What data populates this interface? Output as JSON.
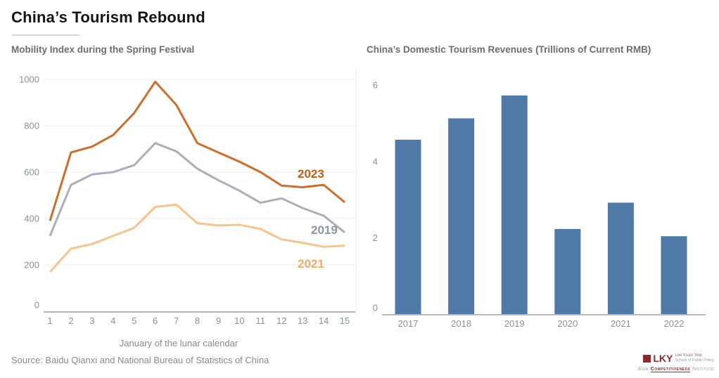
{
  "header": {
    "title": "China’s Tourism Rebound"
  },
  "source": "Source: Baidu Qianxi and National Bureau of Statistics of China",
  "logo": {
    "acronym": "LKY",
    "line1": "Lee Kuan Yew",
    "line2": "School of Public Policy",
    "asia": "Asia",
    "competitiveness": "Competitiveness",
    "institute": "Institute",
    "brand_color": "#8e2a2b"
  },
  "chart_data": [
    {
      "type": "line",
      "title": "Mobility Index during the Spring Festival",
      "xlabel": "January of the lunar calendar",
      "x": [
        1,
        2,
        3,
        4,
        5,
        6,
        7,
        8,
        9,
        10,
        11,
        12,
        13,
        14,
        15
      ],
      "ylim": [
        0,
        1000
      ],
      "yticks": [
        0,
        200,
        400,
        600,
        800,
        1000
      ],
      "grid": true,
      "legend_position": "inline-right",
      "series": [
        {
          "name": "2019",
          "color": "#a9b0bb",
          "label_color": "#8c96a7",
          "values": [
            325,
            545,
            590,
            600,
            630,
            725,
            690,
            615,
            565,
            520,
            468,
            487,
            445,
            412,
            340
          ]
        },
        {
          "name": "2021",
          "color": "#f8c48e",
          "label_color": "#f5ab66",
          "values": [
            170,
            270,
            290,
            325,
            360,
            450,
            460,
            380,
            370,
            373,
            355,
            310,
            295,
            278,
            283
          ]
        },
        {
          "name": "2023",
          "color": "#cd6e2d",
          "label_color": "#c45e11",
          "values": [
            390,
            685,
            710,
            760,
            855,
            990,
            890,
            725,
            685,
            645,
            600,
            542,
            535,
            545,
            470
          ]
        }
      ]
    },
    {
      "type": "bar",
      "title": "China’s Domestic Tourism Revenues (Trillions of Current RMB)",
      "categories": [
        "2017",
        "2018",
        "2019",
        "2020",
        "2021",
        "2022"
      ],
      "values": [
        4.57,
        5.13,
        5.73,
        2.23,
        2.92,
        2.04
      ],
      "ylim": [
        0,
        6.2
      ],
      "yticks": [
        0,
        2,
        4,
        6
      ],
      "grid": false,
      "bar_color": "#4f79a7"
    }
  ]
}
